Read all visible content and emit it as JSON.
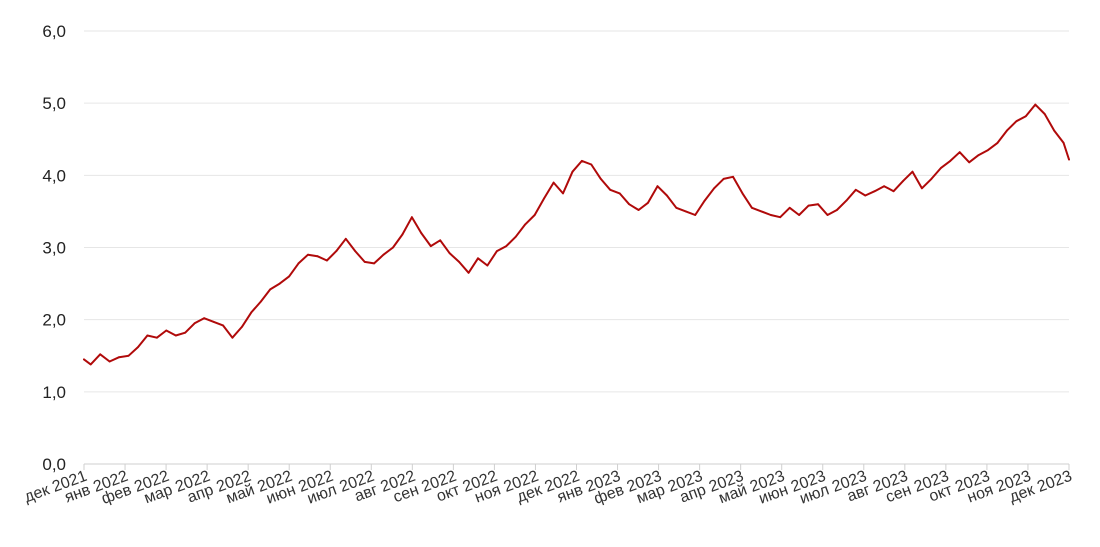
{
  "chart_data": {
    "type": "line",
    "title": "",
    "xlabel": "",
    "ylabel": "",
    "ylim": [
      0,
      6
    ],
    "y_ticks": [
      "0,0",
      "1,0",
      "2,0",
      "3,0",
      "4,0",
      "5,0",
      "6,0"
    ],
    "grid": "horizontal",
    "legend": "none",
    "color": "#b00a0a",
    "x_tick_labels": [
      "дек 2021",
      "янв 2022",
      "фев 2022",
      "мар 2022",
      "апр 2022",
      "май 2022",
      "июн 2022",
      "июл 2022",
      "авг 2022",
      "сен 2022",
      "окт 2022",
      "ноя 2022",
      "дек 2022",
      "янв 2023",
      "фев 2023",
      "мар 2023",
      "апр 2023",
      "май 2023",
      "июн 2023",
      "июл 2023",
      "авг 2023",
      "сен 2023",
      "окт 2023",
      "ноя 2023",
      "дек 2023"
    ],
    "series": [
      {
        "x": [
          "2021-12-01",
          "2021-12-06",
          "2021-12-13",
          "2021-12-20",
          "2021-12-27",
          "2022-01-03",
          "2022-01-10",
          "2022-01-17",
          "2022-01-24",
          "2022-01-31",
          "2022-02-07",
          "2022-02-14",
          "2022-02-21",
          "2022-02-28",
          "2022-03-07",
          "2022-03-14",
          "2022-03-21",
          "2022-03-28",
          "2022-04-04",
          "2022-04-11",
          "2022-04-18",
          "2022-04-25",
          "2022-05-02",
          "2022-05-09",
          "2022-05-16",
          "2022-05-23",
          "2022-05-30",
          "2022-06-06",
          "2022-06-13",
          "2022-06-20",
          "2022-06-27",
          "2022-07-04",
          "2022-07-11",
          "2022-07-18",
          "2022-07-25",
          "2022-08-01",
          "2022-08-08",
          "2022-08-15",
          "2022-08-22",
          "2022-08-29",
          "2022-09-05",
          "2022-09-12",
          "2022-09-19",
          "2022-09-26",
          "2022-10-03",
          "2022-10-10",
          "2022-10-17",
          "2022-10-24",
          "2022-10-31",
          "2022-11-07",
          "2022-11-14",
          "2022-11-21",
          "2022-11-28",
          "2022-12-05",
          "2022-12-12",
          "2022-12-19",
          "2022-12-26",
          "2023-01-02",
          "2023-01-09",
          "2023-01-16",
          "2023-01-23",
          "2023-01-30",
          "2023-02-06",
          "2023-02-13",
          "2023-02-20",
          "2023-02-27",
          "2023-03-06",
          "2023-03-13",
          "2023-03-20",
          "2023-03-27",
          "2023-04-03",
          "2023-04-10",
          "2023-04-17",
          "2023-04-24",
          "2023-05-01",
          "2023-05-08",
          "2023-05-15",
          "2023-05-22",
          "2023-05-29",
          "2023-06-05",
          "2023-06-12",
          "2023-06-19",
          "2023-06-26",
          "2023-07-03",
          "2023-07-10",
          "2023-07-17",
          "2023-07-24",
          "2023-07-31",
          "2023-08-07",
          "2023-08-14",
          "2023-08-21",
          "2023-08-28",
          "2023-09-04",
          "2023-09-11",
          "2023-09-18",
          "2023-09-25",
          "2023-10-02",
          "2023-10-09",
          "2023-10-16",
          "2023-10-23",
          "2023-10-30",
          "2023-11-06",
          "2023-11-13",
          "2023-11-20",
          "2023-11-27",
          "2023-12-01"
        ],
        "y": [
          1.45,
          1.38,
          1.52,
          1.42,
          1.48,
          1.5,
          1.62,
          1.78,
          1.75,
          1.85,
          1.78,
          1.82,
          1.95,
          2.02,
          1.97,
          1.92,
          1.75,
          1.9,
          2.1,
          2.25,
          2.42,
          2.5,
          2.6,
          2.78,
          2.9,
          2.88,
          2.82,
          2.95,
          3.12,
          2.95,
          2.8,
          2.78,
          2.9,
          3.0,
          3.18,
          3.42,
          3.2,
          3.02,
          3.1,
          2.92,
          2.8,
          2.65,
          2.85,
          2.75,
          2.95,
          3.02,
          3.15,
          3.32,
          3.45,
          3.68,
          3.9,
          3.75,
          4.05,
          4.2,
          4.15,
          3.95,
          3.8,
          3.75,
          3.6,
          3.52,
          3.62,
          3.85,
          3.72,
          3.55,
          3.5,
          3.45,
          3.65,
          3.82,
          3.95,
          3.98,
          3.75,
          3.55,
          3.5,
          3.45,
          3.42,
          3.55,
          3.45,
          3.58,
          3.6,
          3.45,
          3.52,
          3.65,
          3.8,
          3.72,
          3.78,
          3.85,
          3.78,
          3.92,
          4.05,
          3.82,
          3.95,
          4.1,
          4.2,
          4.32,
          4.18,
          4.28,
          4.35,
          4.45,
          4.62,
          4.75,
          4.82,
          4.98,
          4.85,
          4.62,
          4.45,
          4.22
        ]
      }
    ]
  }
}
